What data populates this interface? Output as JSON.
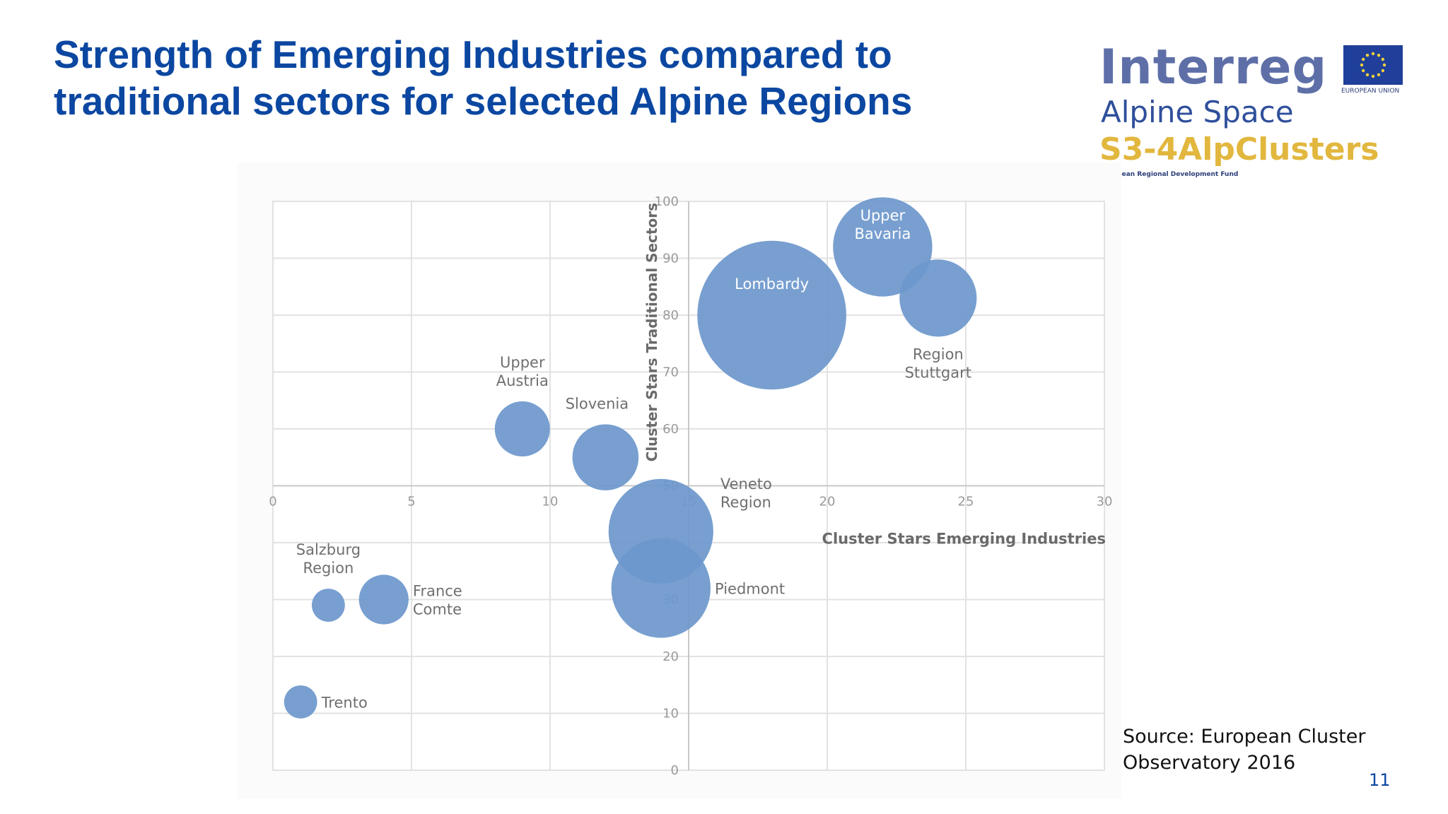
{
  "slide": {
    "title_lines": [
      "Strength of Emerging Industries compared to",
      "traditional sectors for selected Alpine Regions"
    ],
    "source_lines": [
      "Source: European Cluster",
      "Observatory 2016"
    ],
    "page_number": "11"
  },
  "logo": {
    "wordmark": "Interreg",
    "subtitle": "Alpine Space",
    "project": "S3-4AlpClusters",
    "fund": "European Regional Development Fund",
    "flag_label": "EUROPEAN UNION",
    "colors": {
      "wordmark": "#5e6fa8",
      "subtitle": "#2f4f9b",
      "project": "#e2b73e",
      "flag": "#1f3f9a",
      "stars": "#f3d23b"
    }
  },
  "chart_data": {
    "type": "bubble",
    "xlabel": "Cluster  Stars Emerging Industries",
    "ylabel": "Cluster Stars Traditional Sectors",
    "xlim": [
      0,
      30
    ],
    "ylim": [
      0,
      100
    ],
    "x_ticks": [
      0,
      5,
      10,
      15,
      20,
      25,
      30
    ],
    "y_ticks": [
      0,
      10,
      20,
      30,
      40,
      50,
      60,
      70,
      80,
      90,
      100
    ],
    "x_axis_crosses_y_at": 50,
    "y_axis_crosses_x_at": 15,
    "grid": true,
    "bubble_color": "#6d97cc",
    "points": [
      {
        "label": [
          "Upper",
          "Bavaria"
        ],
        "x": 22,
        "y": 92,
        "size": 18,
        "label_pos": "inside-top"
      },
      {
        "label": [
          "Lombardy"
        ],
        "x": 18,
        "y": 80,
        "size": 27,
        "label_pos": "inside-top"
      },
      {
        "label": [
          "Region",
          "Stuttgart"
        ],
        "x": 24,
        "y": 83,
        "size": 14,
        "label_pos": "below"
      },
      {
        "label": [
          "Upper",
          "Austria"
        ],
        "x": 9,
        "y": 60,
        "size": 10,
        "label_pos": "above"
      },
      {
        "label": [
          "Slovenia"
        ],
        "x": 12,
        "y": 55,
        "size": 12,
        "label_pos": "above-right"
      },
      {
        "label": [
          "Veneto",
          "Region"
        ],
        "x": 14,
        "y": 42,
        "size": 19,
        "label_pos": "right-top"
      },
      {
        "label": [
          "Piedmont"
        ],
        "x": 14,
        "y": 32,
        "size": 18,
        "label_pos": "right"
      },
      {
        "label": [
          "Salzburg",
          "Region"
        ],
        "x": 2,
        "y": 29,
        "size": 6,
        "label_pos": "above"
      },
      {
        "label": [
          "France",
          "Comte"
        ],
        "x": 4,
        "y": 30,
        "size": 9,
        "label_pos": "right"
      },
      {
        "label": [
          "Trento"
        ],
        "x": 1,
        "y": 12,
        "size": 6,
        "label_pos": "right"
      }
    ]
  }
}
